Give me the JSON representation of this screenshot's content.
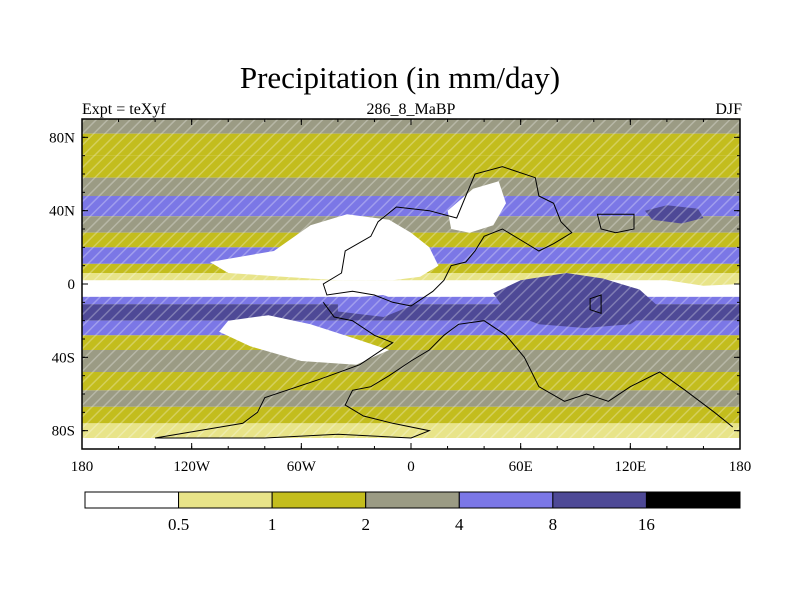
{
  "chart_data": {
    "type": "heatmap",
    "title": "Precipitation (in mm/day)",
    "left_string": "Expt = teXyf",
    "center_string": "286_8_MaBP",
    "right_string": "DJF",
    "x_ticks": [
      "180",
      "120W",
      "60W",
      "0",
      "60E",
      "120E",
      "180"
    ],
    "x_tick_values": [
      -180,
      -120,
      -60,
      0,
      60,
      120,
      180
    ],
    "y_ticks": [
      "80N",
      "40N",
      "0",
      "40S",
      "80S"
    ],
    "y_tick_values": [
      80,
      40,
      0,
      -40,
      -80
    ],
    "xlim": [
      -180,
      180
    ],
    "ylim": [
      -90,
      90
    ],
    "levels": [
      "0.5",
      "1",
      "2",
      "4",
      "8",
      "16"
    ],
    "level_values": [
      0.5,
      1,
      2,
      4,
      8,
      16
    ],
    "colors": [
      "#ffffff",
      "#e8e489",
      "#c3bd1d",
      "#9b9b84",
      "#7b77e6",
      "#4e4996",
      "#000000"
    ],
    "zonal_bands": [
      {
        "lat_from": 90,
        "lat_to": 82,
        "value": 3
      },
      {
        "lat_from": 82,
        "lat_to": 70,
        "value": 1.5
      },
      {
        "lat_from": 70,
        "lat_to": 58,
        "value": 1.5
      },
      {
        "lat_from": 58,
        "lat_to": 48,
        "value": 3
      },
      {
        "lat_from": 48,
        "lat_to": 37,
        "value": 6
      },
      {
        "lat_from": 37,
        "lat_to": 28,
        "value": 3
      },
      {
        "lat_from": 28,
        "lat_to": 20,
        "value": 1.5
      },
      {
        "lat_from": 20,
        "lat_to": 11,
        "value": 6
      },
      {
        "lat_from": 11,
        "lat_to": 6,
        "value": 1.5
      },
      {
        "lat_from": 6,
        "lat_to": 2,
        "value": 0.7
      },
      {
        "lat_from": 2,
        "lat_to": -7,
        "value": 0.3
      },
      {
        "lat_from": -7,
        "lat_to": -11,
        "value": 6
      },
      {
        "lat_from": -11,
        "lat_to": -20,
        "value": 10
      },
      {
        "lat_from": -20,
        "lat_to": -28,
        "value": 6
      },
      {
        "lat_from": -28,
        "lat_to": -36,
        "value": 1.5
      },
      {
        "lat_from": -36,
        "lat_to": -48,
        "value": 3
      },
      {
        "lat_from": -48,
        "lat_to": -58,
        "value": 1.5
      },
      {
        "lat_from": -58,
        "lat_to": -67,
        "value": 3
      },
      {
        "lat_from": -67,
        "lat_to": -76,
        "value": 1.5
      },
      {
        "lat_from": -76,
        "lat_to": -84,
        "value": 0.7
      },
      {
        "lat_from": -84,
        "lat_to": -90,
        "value": 0.3
      }
    ],
    "regions": [
      {
        "name": "dry-north-continent",
        "value": 0.3,
        "points": [
          [
            -110,
            12
          ],
          [
            -75,
            18
          ],
          [
            -55,
            32
          ],
          [
            -35,
            38
          ],
          [
            -12,
            35
          ],
          [
            0,
            28
          ],
          [
            10,
            20
          ],
          [
            15,
            10
          ],
          [
            5,
            4
          ],
          [
            -10,
            2
          ],
          [
            -40,
            2
          ],
          [
            -70,
            4
          ],
          [
            -100,
            6
          ]
        ]
      },
      {
        "name": "dry-northeast-patch",
        "value": 0.3,
        "points": [
          [
            20,
            40
          ],
          [
            34,
            52
          ],
          [
            48,
            56
          ],
          [
            52,
            44
          ],
          [
            45,
            32
          ],
          [
            32,
            28
          ],
          [
            22,
            30
          ]
        ]
      },
      {
        "name": "dry-southern-continent",
        "value": 0.3,
        "points": [
          [
            -100,
            -20
          ],
          [
            -78,
            -17
          ],
          [
            -55,
            -22
          ],
          [
            -30,
            -30
          ],
          [
            -12,
            -36
          ],
          [
            -30,
            -44
          ],
          [
            -60,
            -42
          ],
          [
            -88,
            -34
          ],
          [
            -105,
            -26
          ]
        ]
      },
      {
        "name": "dry-far-east-equator",
        "value": 0.7,
        "points": [
          [
            140,
            2
          ],
          [
            160,
            -1
          ],
          [
            180,
            0
          ],
          [
            180,
            4
          ],
          [
            160,
            5
          ],
          [
            145,
            4
          ]
        ]
      },
      {
        "name": "wet-east-ocean",
        "value": 10,
        "points": [
          [
            45,
            -5
          ],
          [
            60,
            2
          ],
          [
            85,
            6
          ],
          [
            105,
            3
          ],
          [
            125,
            -3
          ],
          [
            135,
            -12
          ],
          [
            120,
            -22
          ],
          [
            95,
            -24
          ],
          [
            70,
            -22
          ],
          [
            52,
            -15
          ]
        ]
      },
      {
        "name": "wet-northeast-pacific",
        "value": 10,
        "points": [
          [
            128,
            40
          ],
          [
            140,
            43
          ],
          [
            157,
            41
          ],
          [
            160,
            36
          ],
          [
            148,
            33
          ],
          [
            132,
            35
          ]
        ]
      },
      {
        "name": "wet-west-ocean",
        "value": 6,
        "points": [
          [
            -40,
            -8
          ],
          [
            -15,
            -6
          ],
          [
            0,
            -12
          ],
          [
            -15,
            -18
          ],
          [
            -40,
            -15
          ]
        ]
      }
    ],
    "coastline_continent_1": [
      [
        -38,
        6
      ],
      [
        -36,
        18
      ],
      [
        -22,
        26
      ],
      [
        -18,
        34
      ],
      [
        -8,
        42
      ],
      [
        10,
        40
      ],
      [
        25,
        36
      ],
      [
        30,
        48
      ],
      [
        35,
        60
      ],
      [
        50,
        64
      ],
      [
        68,
        58
      ],
      [
        70,
        48
      ],
      [
        78,
        44
      ],
      [
        82,
        34
      ],
      [
        88,
        28
      ],
      [
        78,
        22
      ],
      [
        70,
        18
      ],
      [
        60,
        24
      ],
      [
        50,
        30
      ],
      [
        40,
        26
      ],
      [
        35,
        18
      ],
      [
        30,
        12
      ],
      [
        22,
        10
      ],
      [
        18,
        2
      ],
      [
        12,
        -4
      ],
      [
        0,
        -12
      ],
      [
        -10,
        -10
      ],
      [
        -20,
        -6
      ],
      [
        -32,
        -4
      ],
      [
        -46,
        -6
      ],
      [
        -48,
        0
      ]
    ],
    "coastline_continent_2": [
      [
        -48,
        -10
      ],
      [
        -42,
        -18
      ],
      [
        -32,
        -20
      ],
      [
        -20,
        -28
      ],
      [
        -10,
        -32
      ],
      [
        -28,
        -44
      ],
      [
        -50,
        -52
      ],
      [
        -68,
        -58
      ],
      [
        -80,
        -62
      ],
      [
        -84,
        -70
      ],
      [
        -92,
        -76
      ],
      [
        -140,
        -84
      ],
      [
        -80,
        -84
      ],
      [
        -40,
        -82
      ],
      [
        0,
        -84
      ],
      [
        10,
        -80
      ],
      [
        -10,
        -76
      ],
      [
        -26,
        -72
      ],
      [
        -36,
        -66
      ],
      [
        -32,
        -58
      ],
      [
        -22,
        -56
      ],
      [
        -12,
        -50
      ],
      [
        0,
        -42
      ],
      [
        10,
        -36
      ],
      [
        18,
        -28
      ],
      [
        26,
        -22
      ],
      [
        40,
        -20
      ],
      [
        52,
        -28
      ],
      [
        62,
        -40
      ],
      [
        70,
        -56
      ],
      [
        84,
        -64
      ],
      [
        96,
        -60
      ],
      [
        108,
        -64
      ],
      [
        120,
        -56
      ],
      [
        136,
        -48
      ],
      [
        150,
        -58
      ],
      [
        166,
        -70
      ],
      [
        176,
        -78
      ]
    ],
    "coastline_island_east": [
      [
        102,
        38
      ],
      [
        122,
        38
      ],
      [
        122,
        30
      ],
      [
        112,
        28
      ],
      [
        104,
        30
      ]
    ],
    "coastline_island_small": [
      [
        98,
        -8
      ],
      [
        104,
        -6
      ],
      [
        104,
        -16
      ],
      [
        98,
        -14
      ]
    ]
  }
}
